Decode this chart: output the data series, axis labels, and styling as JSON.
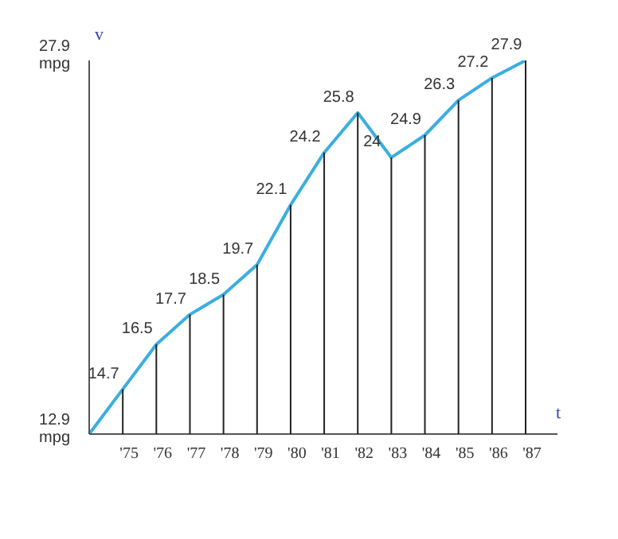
{
  "chart_data": {
    "type": "line",
    "xlabel": "t",
    "ylabel": "v",
    "categories": [
      null,
      "'75",
      "'76",
      "'77",
      "'78",
      "'79",
      "'80",
      "'81",
      "'82",
      "'83",
      "'84",
      "'85",
      "'86",
      "'87"
    ],
    "series": [
      {
        "color": "#3aaee0",
        "values": [
          12.9,
          14.7,
          16.5,
          17.7,
          18.5,
          19.7,
          22.1,
          24.2,
          25.8,
          24,
          24.9,
          26.3,
          27.2,
          27.9
        ]
      }
    ],
    "ylim": [
      12.9,
      27.9
    ],
    "yticks": [
      {
        "value": 12.9,
        "label": "12.9 mpg"
      },
      {
        "value": 27.9,
        "label": "27.9 mpg"
      }
    ],
    "value_labels": [
      null,
      "14.7",
      "16.5",
      "17.7",
      "18.5",
      "19.7",
      "22.1",
      "24.2",
      "25.8",
      "24",
      "24.9",
      "26.3",
      "27.2",
      "27.9"
    ],
    "marker": "none",
    "line_style": "solid",
    "grid": false,
    "legend": false
  }
}
